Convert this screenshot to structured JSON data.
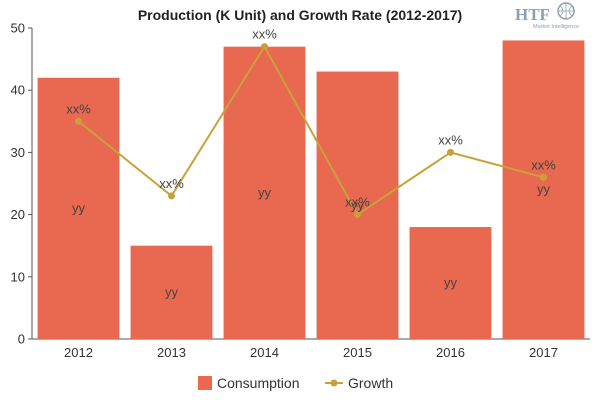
{
  "chart_data": {
    "type": "bar",
    "title": "Production (K Unit) and Growth Rate (2012-2017)",
    "xlabel": "",
    "ylabel": "",
    "categories": [
      "2012",
      "2013",
      "2014",
      "2015",
      "2016",
      "2017"
    ],
    "ylim": [
      0,
      50
    ],
    "yticks": [
      0,
      10,
      20,
      30,
      40,
      50
    ],
    "grid": false,
    "legend_position": "bottom",
    "series": [
      {
        "name": "Consumption",
        "kind": "bar",
        "color": "#e8694f",
        "values": [
          42,
          15,
          47,
          43,
          18,
          48
        ],
        "labels": [
          "yy",
          "yy",
          "yy",
          "yy",
          "yy",
          "yy"
        ]
      },
      {
        "name": "Growth",
        "kind": "line",
        "color": "#c9a13a",
        "values": [
          35,
          23,
          47,
          20,
          30,
          26
        ],
        "labels": [
          "xx%",
          "xx%",
          "xx%",
          "xx%",
          "xx%",
          "xx%"
        ]
      }
    ]
  },
  "watermark": {
    "brand": "HTF",
    "tagline": "Market Intelligence"
  }
}
